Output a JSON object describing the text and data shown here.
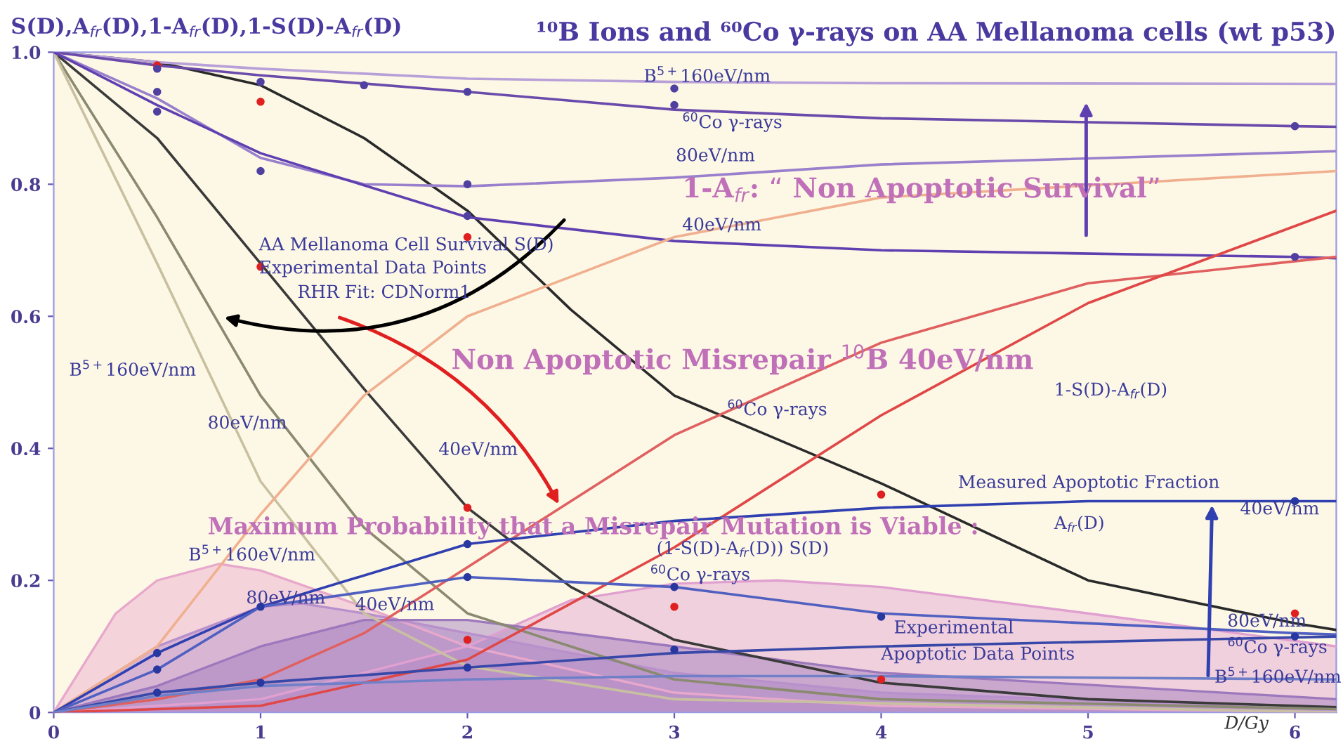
{
  "chart_data": {
    "type": "line",
    "title": "¹⁰B Ions and ⁶⁰Co γ-rays on AA Mellanoma cells (wt p53)",
    "ylabel": "S(D),A$_{fr}$(D),1-A$_{fr}$(D),1-S(D)-A$_{fr}$(D)",
    "xlabel": "D/Gy",
    "xlim": [
      0,
      6.2
    ],
    "ylim": [
      0,
      1.0
    ],
    "xticks": [
      0,
      1,
      2,
      3,
      4,
      5,
      6
    ],
    "yticks": [
      0,
      0.2,
      0.4,
      0.6,
      0.8,
      {
        "value": 1.0,
        "label": "1.0"
      }
    ],
    "grid": false,
    "legend": false,
    "series": [
      {
        "type": "area",
        "color": "#e8a8cc",
        "x": [
          0,
          0.3,
          0.5,
          0.8,
          1,
          1.5,
          2,
          3,
          4,
          6.2
        ],
        "values": [
          0,
          0.15,
          0.2,
          0.225,
          0.215,
          0.16,
          0.1,
          0.03,
          0.01,
          0
        ]
      },
      {
        "type": "area",
        "color": "#e0a0d0",
        "x": [
          0,
          1,
          2,
          2.5,
          3,
          3.5,
          4,
          5,
          6.2
        ],
        "values": [
          0,
          0.02,
          0.1,
          0.17,
          0.195,
          0.2,
          0.19,
          0.15,
          0.1
        ]
      },
      {
        "type": "area",
        "color": "#b890cc",
        "x": [
          0,
          0.5,
          1,
          1.2,
          1.5,
          2,
          3,
          4,
          6.2
        ],
        "values": [
          0,
          0.1,
          0.16,
          0.165,
          0.15,
          0.12,
          0.06,
          0.03,
          0.005
        ]
      },
      {
        "type": "area",
        "color": "#9c78bc",
        "x": [
          0,
          0.5,
          1,
          1.5,
          2,
          3,
          4,
          6.2
        ],
        "values": [
          0,
          0.04,
          0.1,
          0.14,
          0.14,
          0.1,
          0.06,
          0.02
        ]
      },
      {
        "color": "#2a2a2a",
        "x": [
          0,
          0.5,
          1,
          1.5,
          2,
          2.5,
          3,
          4,
          5,
          6,
          6.2
        ],
        "values": [
          1,
          0.985,
          0.95,
          0.87,
          0.76,
          0.61,
          0.48,
          0.347,
          0.2,
          0.135,
          0.125
        ]
      },
      {
        "type": "line",
        "color": "#3a3a3a",
        "x": [
          0,
          0.5,
          1,
          1.5,
          2,
          2.5,
          3,
          4,
          5,
          6,
          6.2
        ],
        "values": [
          1,
          0.87,
          0.68,
          0.49,
          0.31,
          0.19,
          0.11,
          0.045,
          0.02,
          0.01,
          0.008
        ]
      },
      {
        "type": "line",
        "color": "#8a8a70",
        "x": [
          0,
          0.5,
          1,
          1.5,
          2,
          3,
          4,
          6.2
        ],
        "values": [
          1,
          0.75,
          0.48,
          0.28,
          0.15,
          0.05,
          0.02,
          0.005
        ]
      },
      {
        "type": "line",
        "color": "#c8c0a0",
        "x": [
          0,
          0.5,
          1,
          1.5,
          2,
          3,
          6.2
        ],
        "values": [
          1,
          0.68,
          0.35,
          0.15,
          0.07,
          0.02,
          0
        ]
      },
      {
        "type": "line",
        "color": "#b8a0d8",
        "x": [
          0,
          0.5,
          1,
          2,
          3,
          4,
          6.2
        ],
        "values": [
          1,
          0.985,
          0.975,
          0.96,
          0.955,
          0.953,
          0.952
        ]
      },
      {
        "type": "line",
        "color": "#6a4aaa",
        "x": [
          0,
          0.5,
          1,
          2,
          3,
          4,
          6,
          6.2
        ],
        "values": [
          1,
          0.98,
          0.965,
          0.94,
          0.913,
          0.9,
          0.888,
          0.887
        ]
      },
      {
        "type": "line",
        "color": "#9a80cc",
        "x": [
          0,
          0.5,
          1,
          1.5,
          2,
          3,
          4,
          6.2
        ],
        "values": [
          1,
          0.93,
          0.84,
          0.8,
          0.797,
          0.81,
          0.83,
          0.85
        ]
      },
      {
        "type": "line",
        "color": "#6040b0",
        "x": [
          0,
          0.5,
          1,
          2,
          3,
          4,
          6,
          6.2
        ],
        "values": [
          1,
          0.92,
          0.847,
          0.75,
          0.714,
          0.7,
          0.69,
          0.688
        ]
      },
      {
        "type": "line",
        "color": "#e06060",
        "x": [
          0,
          0.5,
          1,
          1.5,
          2,
          3,
          4,
          5,
          6.2
        ],
        "values": [
          0,
          0.02,
          0.05,
          0.12,
          0.22,
          0.42,
          0.56,
          0.65,
          0.69
        ]
      },
      {
        "type": "line",
        "color": "#e04848",
        "x": [
          0,
          1,
          2,
          3,
          4,
          5,
          6.2
        ],
        "values": [
          0,
          0.01,
          0.08,
          0.25,
          0.45,
          0.62,
          0.76
        ]
      },
      {
        "type": "line",
        "color": "#f0b090",
        "x": [
          0,
          0.5,
          1,
          1.5,
          2,
          3,
          4,
          6.2
        ],
        "values": [
          0,
          0.1,
          0.3,
          0.48,
          0.6,
          0.72,
          0.78,
          0.82
        ]
      },
      {
        "type": "line",
        "color": "#3040b0",
        "x": [
          0,
          0.5,
          1,
          2,
          3,
          4,
          5,
          6.2
        ],
        "values": [
          0,
          0.09,
          0.16,
          0.255,
          0.29,
          0.31,
          0.32,
          0.32
        ]
      },
      {
        "type": "line",
        "color": "#5060c0",
        "x": [
          0,
          0.5,
          1,
          2,
          3,
          4,
          6,
          6.2
        ],
        "values": [
          0,
          0.065,
          0.16,
          0.205,
          0.19,
          0.15,
          0.12,
          0.118
        ]
      },
      {
        "type": "line",
        "color": "#3848a8",
        "x": [
          0,
          0.5,
          1,
          2,
          3,
          4,
          6.2
        ],
        "values": [
          0,
          0.03,
          0.045,
          0.068,
          0.09,
          0.1,
          0.115
        ]
      },
      {
        "type": "line",
        "color": "#7080c8",
        "x": [
          0,
          0.5,
          1,
          2,
          3,
          4,
          6.2
        ],
        "values": [
          0,
          0.025,
          0.04,
          0.05,
          0.055,
          0.055,
          0.05
        ]
      },
      {
        "type": "scatter",
        "color": "#e02020",
        "x": [
          0.5,
          1,
          1,
          2,
          2,
          2,
          3,
          4,
          4,
          6
        ],
        "values": [
          0.98,
          0.925,
          0.675,
          0.72,
          0.31,
          0.11,
          0.16,
          0.33,
          0.05,
          0.15
        ]
      },
      {
        "type": "scatter",
        "color": "#5040a0",
        "x": [
          0.5,
          0.5,
          0.5,
          1,
          1,
          1.5,
          2,
          2,
          2,
          3,
          3,
          6,
          6
        ],
        "values": [
          0.975,
          0.94,
          0.91,
          0.955,
          0.82,
          0.95,
          0.94,
          0.8,
          0.752,
          0.945,
          0.92,
          0.888,
          0.69
        ]
      },
      {
        "type": "scatter",
        "color": "#2838a0",
        "x": [
          0.5,
          0.5,
          0.5,
          1,
          1,
          2,
          2,
          2,
          3,
          3,
          4,
          6,
          6
        ],
        "values": [
          0.09,
          0.065,
          0.03,
          0.16,
          0.045,
          0.255,
          0.205,
          0.068,
          0.19,
          0.095,
          0.145,
          0.32,
          0.115
        ]
      }
    ],
    "annotations": [
      "B$^{5+}$160eV/nm",
      "$^{60}$Co γ-rays",
      "80eV/nm",
      "1-A$_{fr}$: “ Non Apoptotic Survival”",
      "40eV/nm",
      "AA Mellanoma Cell Survival S(D)",
      "Experimental Data Points",
      "RHR Fit: CDNorm1",
      "B$^{5+}$160eV/nm",
      "80eV/nm",
      "40eV/nm",
      "Non Apoptotic Misrepair $^{10}$B 40eV/nm",
      "$^{60}$Co γ-rays",
      "1-S(D)-A$_{fr}$(D)",
      {
        "text": "Measured Apoptotic Fraction",
        "x": 5.6,
        "y": 0.32
      },
      "A$_{fr}$(D)",
      "40eV/nm",
      {
        "text": "Maximum Probability that a Misrepair Mutation is Viable :",
        "x": 2.45,
        "y": 0.31
      },
      "(1-S(D)-A$_{fr}$(D)) S(D)",
      "B$^{5+}$160eV/nm",
      "$^{60}$Co γ-rays",
      "80eV/nm",
      "40eV/nm",
      "Experimental",
      "Apoptotic Data Points",
      "80eV/nm",
      "$^{60}$Co γ-rays",
      "B$^{5+}$160eV/nm"
    ]
  }
}
